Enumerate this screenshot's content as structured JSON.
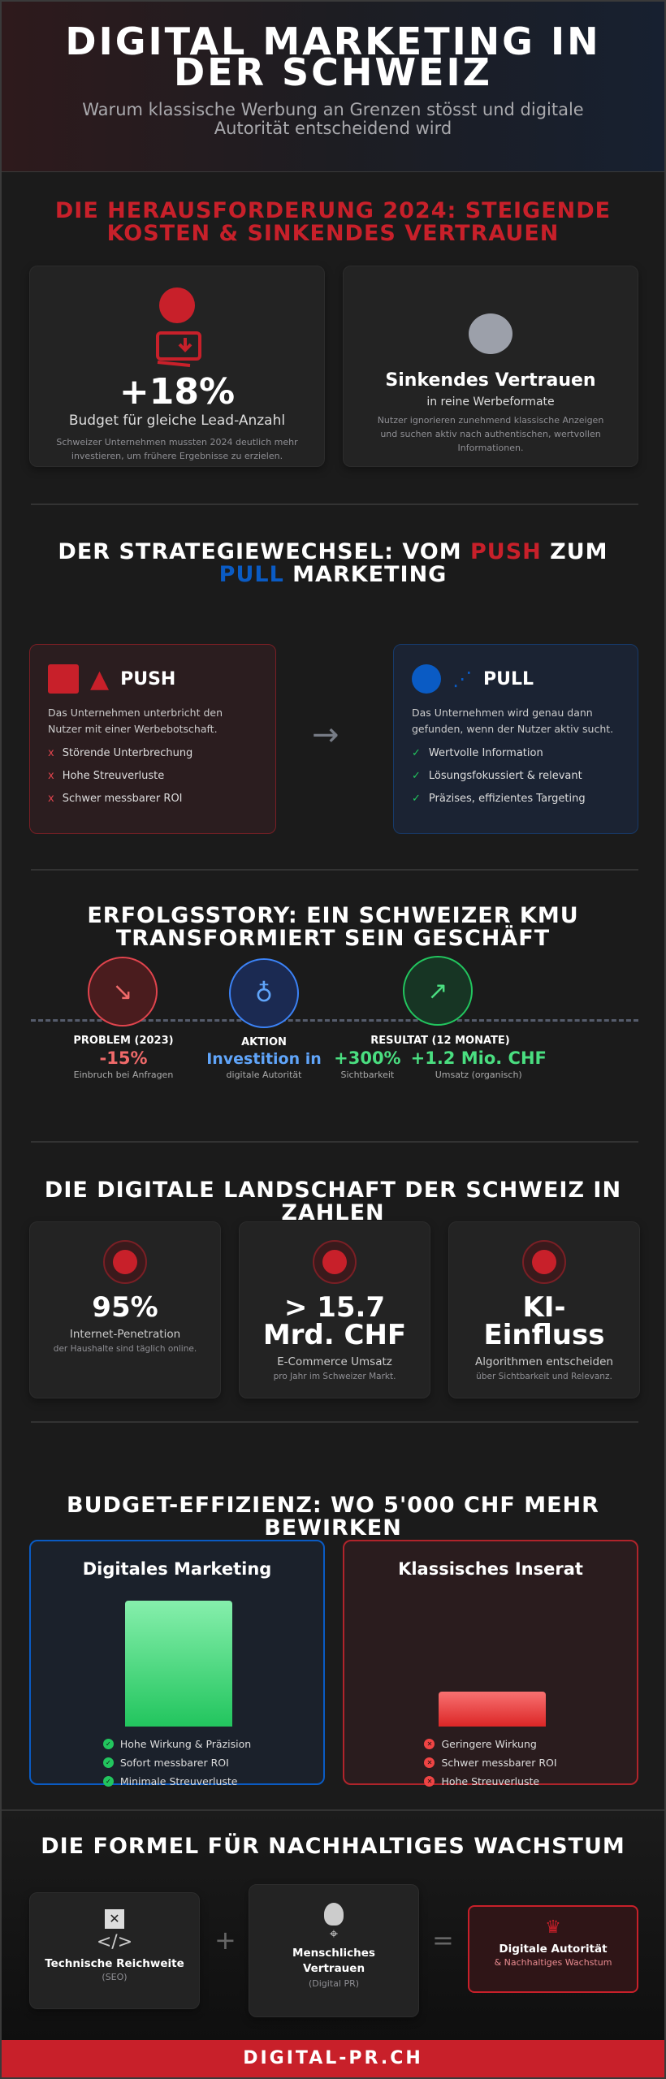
{
  "header": {
    "title": "DIGITAL MARKETING IN DER SCHWEIZ",
    "subtitle": "Warum klassische Werbung an Grenzen stösst und digitale Autorität entscheidend wird"
  },
  "challenge": {
    "title": "DIE HERAUSFORDERUNG 2024: STEIGENDE KOSTEN & SINKENDES VERTRAUEN",
    "cost_card": {
      "value": "+18%",
      "label": "Budget für gleiche Lead-Anzahl",
      "desc": "Schweizer Unternehmen mussten 2024 deutlich mehr investieren, um frühere Ergebnisse zu erzielen."
    },
    "trust_card": {
      "title": "Sinkendes Vertrauen",
      "label": "in reine Werbeformate",
      "desc": "Nutzer ignorieren zunehmend klassische Anzeigen und suchen aktiv nach authentischen, wertvollen Informationen."
    }
  },
  "strategy": {
    "title_pre": "DER STRATEGIEWECHSEL: VOM ",
    "title_push": "PUSH",
    "title_mid": " ZUM ",
    "title_pull": "PULL",
    "title_post": " MARKETING",
    "push": {
      "label": "PUSH",
      "desc": "Das Unternehmen unterbricht den Nutzer mit einer Werbebotschaft.",
      "items": [
        "Störende Unterbrechung",
        "Hohe Streuverluste",
        "Schwer messbarer ROI"
      ],
      "marker": "x"
    },
    "pull": {
      "label": "PULL",
      "desc": "Das Unternehmen wird genau dann gefunden, wenn der Nutzer aktiv sucht.",
      "items": [
        "Wertvolle Information",
        "Lösungsfokussiert & relevant",
        "Präzises, effizientes Targeting"
      ],
      "marker": "✓"
    },
    "arrow": "→"
  },
  "story": {
    "title": "ERFOLGSSTORY: EIN SCHWEIZER KMU TRANSFORMIERT SEIN GESCHÄFT",
    "problem": {
      "heading": "PROBLEM (2023)",
      "value": "-15%",
      "desc": "Einbruch bei Anfragen"
    },
    "action": {
      "heading": "AKTION",
      "value": "Investition in",
      "desc": "digitale Autorität"
    },
    "result": {
      "heading": "RESULTAT (12 MONATE)",
      "value1": "+300%",
      "desc1": "Sichtbarkeit",
      "value2": "+1.2 Mio. CHF",
      "desc2": "Umsatz (organisch)"
    }
  },
  "numbers": {
    "title": "DIE DIGITALE LANDSCHAFT DER SCHWEIZ IN ZAHLEN",
    "cards": [
      {
        "icon": "globe-icon",
        "value": "95%",
        "label": "Internet-Penetration",
        "desc": "der Haushalte sind täglich online."
      },
      {
        "icon": "cart-icon",
        "value": "> 15.7 Mrd. CHF",
        "label": "E-Commerce Umsatz",
        "desc": "pro Jahr im Schweizer Markt."
      },
      {
        "icon": "ai-icon",
        "value": "KI-Einfluss",
        "label": "Algorithmen entscheiden",
        "desc": "über Sichtbarkeit und Relevanz."
      }
    ]
  },
  "budget": {
    "title": "BUDGET-EFFIZIENZ: WO 5'000 CHF MEHR BEWIRKEN",
    "digital": {
      "title": "Digitales Marketing",
      "impact": 1.0,
      "items": [
        "Hohe Wirkung & Präzision",
        "Sofort messbarer ROI",
        "Minimale Streuverluste"
      ]
    },
    "classic": {
      "title": "Klassisches Inserat",
      "impact": 0.28,
      "items": [
        "Geringere Wirkung",
        "Schwer messbarer ROI",
        "Hohe Streuverluste"
      ]
    }
  },
  "formula": {
    "title": "DIE FORMEL FÜR NACHHALTIGES WACHSTUM",
    "a": {
      "title": "Technische Reichweite",
      "sub": "(SEO)"
    },
    "plus": "+",
    "b": {
      "title": "Menschliches Vertrauen",
      "sub": "(Digital PR)"
    },
    "equals": "=",
    "c": {
      "title": "Digitale Autorität",
      "sub": "& Nachhaltiges Wachstum"
    }
  },
  "footer": {
    "brand": "DIGITAL-PR.CH"
  },
  "colors": {
    "red": "#c8202a",
    "blue": "#0a5bc4",
    "green": "#4ade80"
  }
}
